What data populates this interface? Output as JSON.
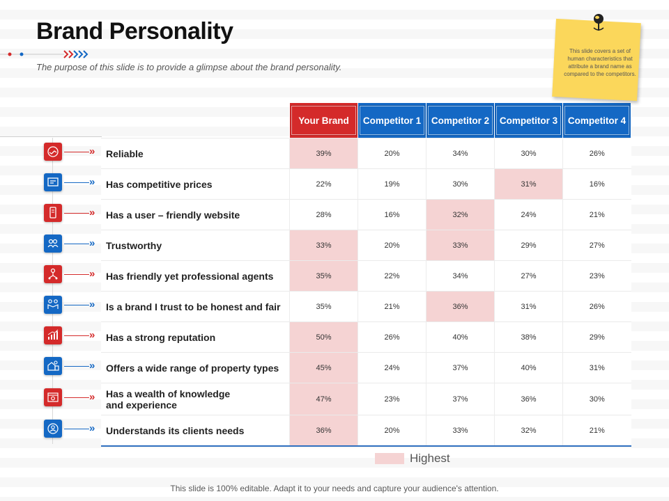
{
  "slide": {
    "title": "Brand Personality",
    "subtitle": "The purpose of this slide is to provide a glimpse about the brand personality.",
    "note": "This slide covers a set of human characteristics that attribute a brand name as compared to the competitors.",
    "footer": "This slide is 100% editable. Adapt it to your needs and capture your audience's attention."
  },
  "colors": {
    "brand_red": "#d42a2a",
    "competitor_blue": "#1468c4",
    "highlight": "#f5d3d3",
    "note_yellow": "#fbd75b"
  },
  "table": {
    "headers": [
      "Your Brand",
      "Competitor 1",
      "Competitor 2",
      "Competitor 3",
      "Competitor 4"
    ],
    "rows": [
      {
        "label": "Reliable",
        "values": [
          "39%",
          "20%",
          "34%",
          "30%",
          "26%"
        ],
        "highlight": [
          0
        ],
        "icon": "handshake-icon",
        "icon_color": "red"
      },
      {
        "label": "Has competitive prices",
        "values": [
          "22%",
          "19%",
          "30%",
          "31%",
          "16%"
        ],
        "highlight": [
          3
        ],
        "icon": "price-board-icon",
        "icon_color": "blue"
      },
      {
        "label": "Has a user – friendly website",
        "values": [
          "28%",
          "16%",
          "32%",
          "24%",
          "21%"
        ],
        "highlight": [
          2
        ],
        "icon": "mobile-site-icon",
        "icon_color": "red"
      },
      {
        "label": "Trustworthy",
        "values": [
          "33%",
          "20%",
          "33%",
          "29%",
          "27%"
        ],
        "highlight": [
          0,
          2
        ],
        "icon": "people-trust-icon",
        "icon_color": "blue"
      },
      {
        "label": "Has friendly yet professional  agents",
        "values": [
          "35%",
          "22%",
          "34%",
          "27%",
          "23%"
        ],
        "highlight": [
          0
        ],
        "icon": "agent-network-icon",
        "icon_color": "red"
      },
      {
        "label": "Is a brand I trust to be honest and fair",
        "values": [
          "35%",
          "21%",
          "36%",
          "31%",
          "26%"
        ],
        "highlight": [
          2
        ],
        "icon": "handshake-people-icon",
        "icon_color": "blue"
      },
      {
        "label": "Has a strong reputation",
        "values": [
          "50%",
          "26%",
          "40%",
          "38%",
          "29%"
        ],
        "highlight": [
          0
        ],
        "icon": "growth-chart-icon",
        "icon_color": "red"
      },
      {
        "label": "Offers a wide range of property types",
        "values": [
          "45%",
          "24%",
          "37%",
          "40%",
          "31%"
        ],
        "highlight": [
          0
        ],
        "icon": "property-icon",
        "icon_color": "blue"
      },
      {
        "label": "Has a wealth of knowledge\nand experience",
        "values": [
          "47%",
          "23%",
          "37%",
          "36%",
          "30%"
        ],
        "highlight": [
          0
        ],
        "icon": "browser-gear-icon",
        "icon_color": "red"
      },
      {
        "label": "Understands its clients needs",
        "values": [
          "36%",
          "20%",
          "33%",
          "32%",
          "21%"
        ],
        "highlight": [
          0
        ],
        "icon": "client-focus-icon",
        "icon_color": "blue"
      }
    ]
  },
  "legend": {
    "label": "Highest"
  }
}
